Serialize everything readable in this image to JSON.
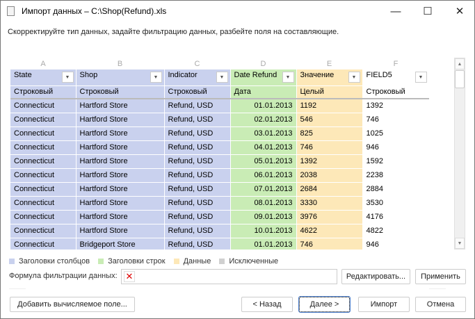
{
  "window": {
    "title": "Импорт данных – C:\\Shop(Refund).xls",
    "minimize": "—",
    "maximize": "☐",
    "close": "✕"
  },
  "hint": "Скорректируйте тип данных, задайте фильтрацию данных, разбейте поля на составляющие.",
  "grid": {
    "letters": [
      "A",
      "B",
      "C",
      "D",
      "E",
      "F"
    ],
    "headers": [
      "State",
      "Shop",
      "Indicator",
      "Date Refund",
      "Значение",
      "FIELD5"
    ],
    "types": [
      "Строковый",
      "Строковый",
      "Строковый",
      "Дата",
      "Целый",
      "Строковый"
    ],
    "rows": [
      [
        "Connecticut",
        "Hartford Store",
        "Refund, USD",
        "01.01.2013",
        "1192",
        "1392"
      ],
      [
        "Connecticut",
        "Hartford Store",
        "Refund, USD",
        "02.01.2013",
        "546",
        "746"
      ],
      [
        "Connecticut",
        "Hartford Store",
        "Refund, USD",
        "03.01.2013",
        "825",
        "1025"
      ],
      [
        "Connecticut",
        "Hartford Store",
        "Refund, USD",
        "04.01.2013",
        "746",
        "946"
      ],
      [
        "Connecticut",
        "Hartford Store",
        "Refund, USD",
        "05.01.2013",
        "1392",
        "1592"
      ],
      [
        "Connecticut",
        "Hartford Store",
        "Refund, USD",
        "06.01.2013",
        "2038",
        "2238"
      ],
      [
        "Connecticut",
        "Hartford Store",
        "Refund, USD",
        "07.01.2013",
        "2684",
        "2884"
      ],
      [
        "Connecticut",
        "Hartford Store",
        "Refund, USD",
        "08.01.2013",
        "3330",
        "3530"
      ],
      [
        "Connecticut",
        "Hartford Store",
        "Refund, USD",
        "09.01.2013",
        "3976",
        "4176"
      ],
      [
        "Connecticut",
        "Hartford Store",
        "Refund, USD",
        "10.01.2013",
        "4622",
        "4822"
      ],
      [
        "Connecticut",
        "Bridgeport Store",
        "Refund, USD",
        "01.01.2013",
        "746",
        "946"
      ]
    ]
  },
  "legend": [
    {
      "label": "Заголовки столбцов",
      "color": "#c9d1ee"
    },
    {
      "label": "Заголовки строк",
      "color": "#c9ecb5"
    },
    {
      "label": "Данные",
      "color": "#fde8b8"
    },
    {
      "label": "Исключенные",
      "color": "#d0d0d0"
    }
  ],
  "filter": {
    "label": "Формула фильтрации данных:",
    "value": "",
    "edit": "Редактировать...",
    "apply": "Применить"
  },
  "footer": {
    "add_field": "Добавить вычисляемое поле...",
    "back": "< Назад",
    "next": "Далее >",
    "import": "Импорт",
    "cancel": "Отмена"
  }
}
